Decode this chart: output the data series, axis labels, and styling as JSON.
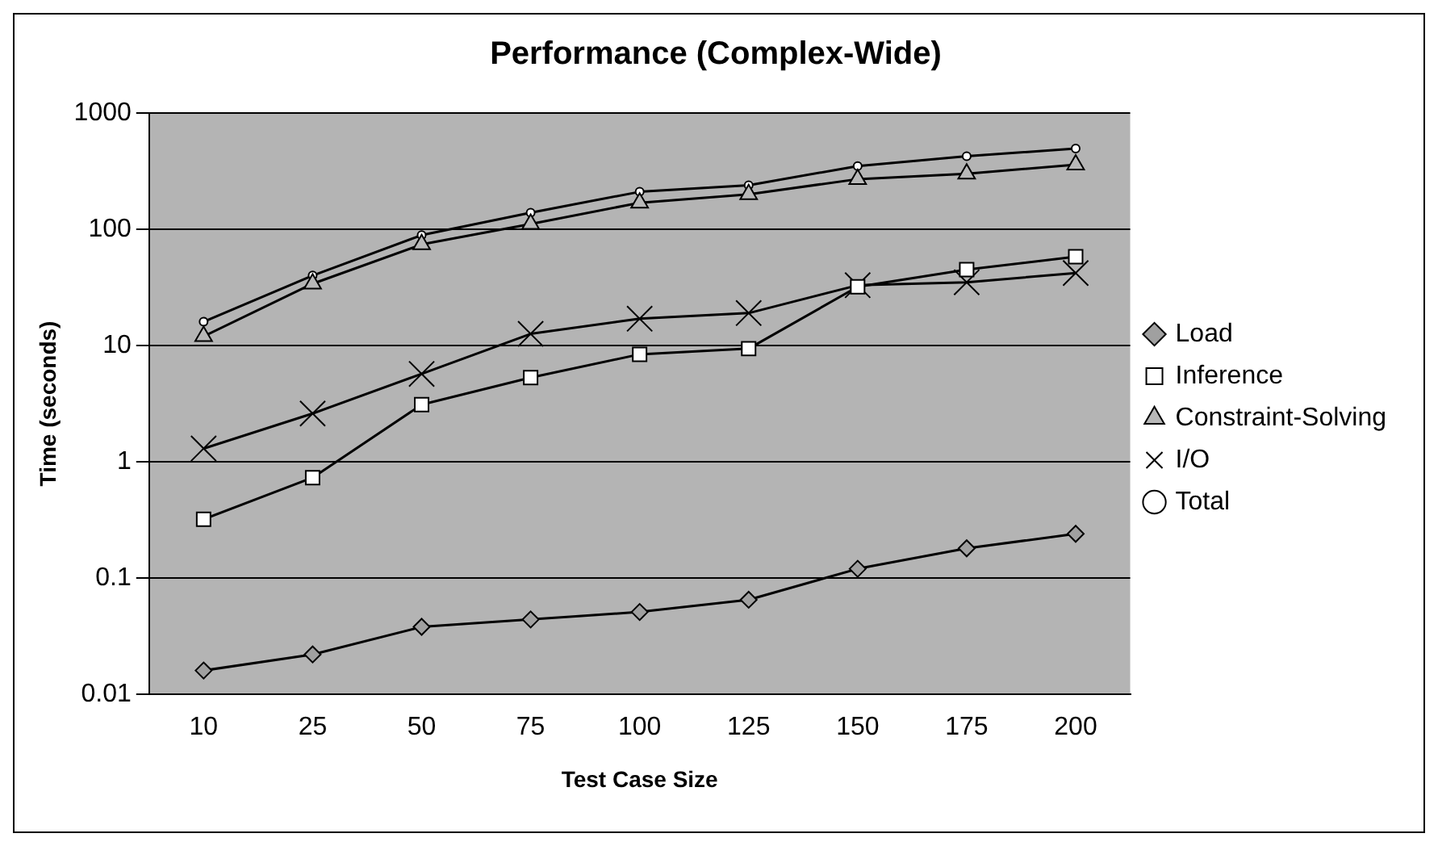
{
  "chart_data": {
    "type": "line",
    "title": "Performance (Complex-Wide)",
    "xlabel": "Test Case Size",
    "ylabel": "Time (seconds)",
    "categories": [
      "10",
      "25",
      "50",
      "75",
      "100",
      "125",
      "150",
      "175",
      "200"
    ],
    "log": "y",
    "ylim": [
      0.01,
      1000
    ],
    "yticks": [
      0.01,
      0.1,
      1,
      10,
      100,
      1000
    ],
    "grid": "y",
    "legend": "right",
    "series": [
      {
        "name": "Load",
        "color": "#000000",
        "marker": "diamond",
        "values": [
          0.016,
          0.022,
          0.038,
          0.044,
          0.051,
          0.065,
          0.12,
          0.18,
          0.24
        ]
      },
      {
        "name": "Inference",
        "color": "#000000",
        "marker": "square",
        "values": [
          0.32,
          0.73,
          3.1,
          5.3,
          8.4,
          9.4,
          32,
          45,
          58
        ]
      },
      {
        "name": "Constraint-Solving",
        "color": "#000000",
        "marker": "triangle",
        "values": [
          12,
          34,
          74,
          111,
          169,
          200,
          270,
          300,
          360
        ]
      },
      {
        "name": "I/O",
        "color": "#000000",
        "marker": "cross",
        "values": [
          1.3,
          2.6,
          5.7,
          12.6,
          17,
          19,
          33,
          35,
          42
        ]
      },
      {
        "name": "Total",
        "color": "#000000",
        "marker": "circle",
        "values": [
          16,
          40,
          89,
          139,
          210,
          239,
          350,
          425,
          494
        ]
      }
    ]
  }
}
